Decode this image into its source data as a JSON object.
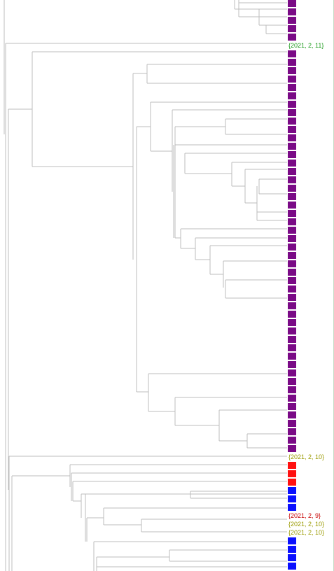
{
  "colors": {
    "line": "#bcbcbc",
    "purple": "#7a0a86",
    "red": "#ff1010",
    "blue": "#0a10ff",
    "label_green": "#1a9a1a",
    "label_olive": "#9a9a00",
    "label_red": "#c80000"
  },
  "rows": [
    "purple",
    "purple",
    "purple",
    "purple",
    "purple",
    "label:{2021, 2, 11}:green",
    "purple",
    "purple",
    "purple",
    "purple",
    "purple",
    "purple",
    "purple",
    "purple",
    "purple",
    "purple",
    "purple",
    "purple",
    "purple",
    "purple",
    "purple",
    "purple",
    "purple",
    "purple",
    "purple",
    "purple",
    "purple",
    "purple",
    "purple",
    "purple",
    "purple",
    "purple",
    "purple",
    "purple",
    "purple",
    "purple",
    "purple",
    "purple",
    "purple",
    "purple",
    "purple",
    "purple",
    "purple",
    "purple",
    "purple",
    "purple",
    "purple",
    "purple",
    "purple",
    "purple",
    "purple",
    "purple",
    "purple",
    "purple",
    "label:{2021, 2, 10}:olive",
    "red",
    "red",
    "red",
    "blue",
    "blue",
    "blue",
    "label:{2021, 2, 9}:red",
    "label:{2021, 2, 10}:olive",
    "label:{2021, 2, 10}:olive",
    "blue",
    "blue",
    "blue",
    "blue"
  ]
}
